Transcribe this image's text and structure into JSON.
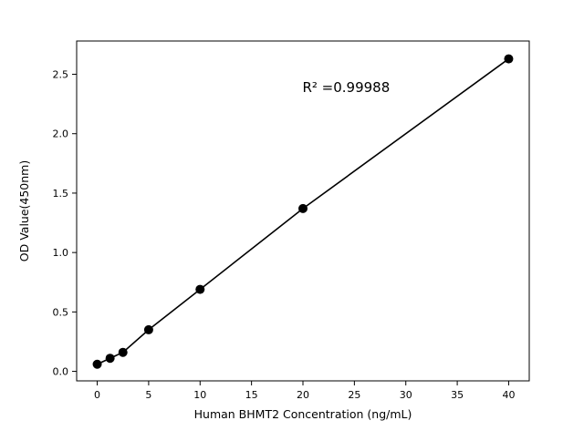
{
  "figure": {
    "background": "#ffffff"
  },
  "chart_data": {
    "type": "line",
    "title": "",
    "xlabel": "Human BHMT2 Concentration (ng/mL)",
    "ylabel": "OD Value(450nm)",
    "annotation": {
      "text": "R² =0.99988",
      "x": 24.2,
      "y": 2.35
    },
    "x": [
      0,
      1.25,
      2.5,
      5,
      10,
      20,
      40
    ],
    "y": [
      0.06,
      0.11,
      0.16,
      0.35,
      0.69,
      1.37,
      2.63
    ],
    "xticks": [
      0,
      5,
      10,
      15,
      20,
      25,
      30,
      35,
      40
    ],
    "yticks": [
      0.0,
      0.5,
      1.0,
      1.5,
      2.0,
      2.5
    ],
    "xlim": [
      -2,
      42
    ],
    "ylim": [
      -0.08,
      2.78
    ],
    "line_color": "#000000",
    "marker_color": "#000000",
    "axis_color": "#000000",
    "grid": false,
    "legend": false
  }
}
